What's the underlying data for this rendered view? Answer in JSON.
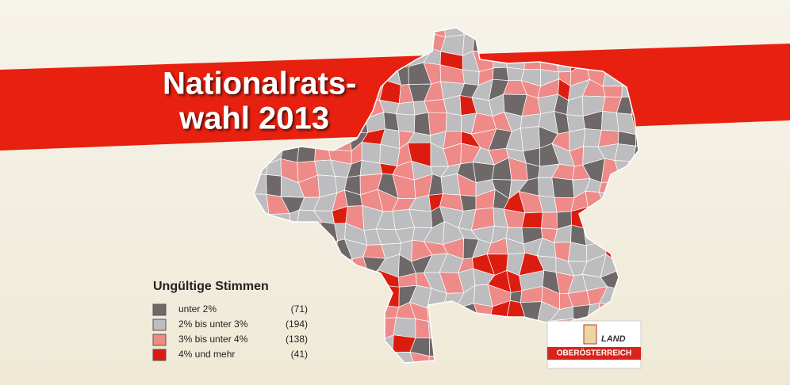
{
  "header": {
    "title_lines": [
      "Nationalrats-",
      "wahl 2013"
    ]
  },
  "legend": {
    "title": "Ungültige Stimmen",
    "items": [
      {
        "label": "unter 2%",
        "count": "(71)",
        "color": "#6e6869"
      },
      {
        "label": "2% bis unter 3%",
        "count": "(194)",
        "color": "#bdbcbe"
      },
      {
        "label": "3% bis unter 4%",
        "count": "(138)",
        "color": "#ee8a88"
      },
      {
        "label": "4% und mehr",
        "count": "(41)",
        "color": "#dd1c10"
      }
    ]
  },
  "logo": {
    "line1": "LAND",
    "line2": "OBERÖSTERREICH"
  }
}
